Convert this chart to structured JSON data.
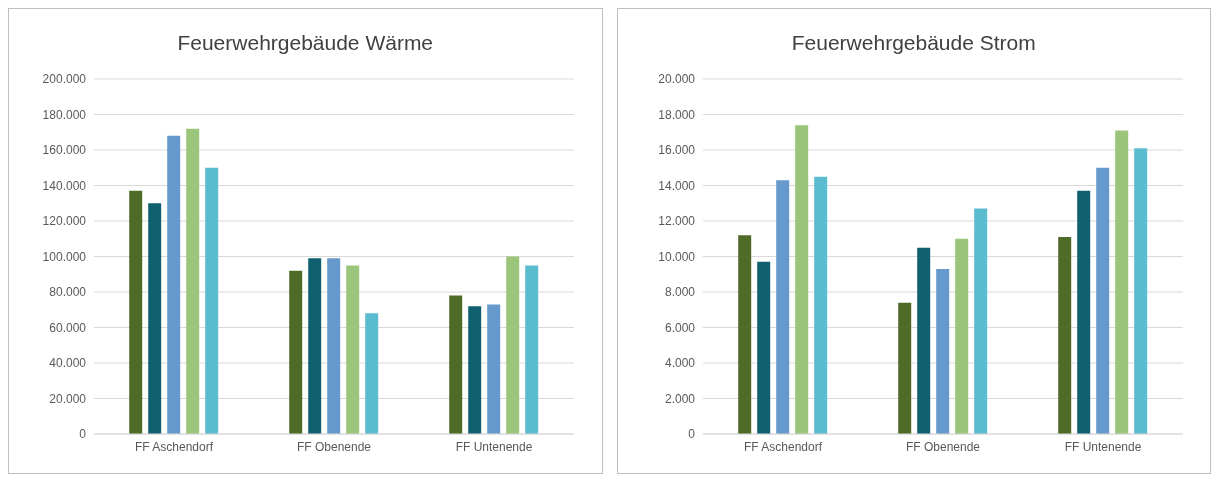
{
  "chart_data": [
    {
      "type": "bar",
      "title": "Feuerwehrgebäude Wärme",
      "categories": [
        "FF Aschendorf",
        "FF Obenende",
        "FF Untenende"
      ],
      "series": [
        {
          "color": "#4f6b28",
          "values": [
            137000,
            92000,
            78000
          ]
        },
        {
          "color": "#10616f",
          "values": [
            130000,
            99000,
            72000
          ]
        },
        {
          "color": "#6699cc",
          "values": [
            168000,
            99000,
            73000
          ]
        },
        {
          "color": "#9bc57a",
          "values": [
            172000,
            95000,
            100000
          ]
        },
        {
          "color": "#5bbccf",
          "values": [
            150000,
            68000,
            95000
          ]
        }
      ],
      "ylim": [
        0,
        200000
      ],
      "yticks": [
        {
          "value": 0,
          "label": "0"
        },
        {
          "value": 20000,
          "label": "20.000"
        },
        {
          "value": 40000,
          "label": "40.000"
        },
        {
          "value": 60000,
          "label": "60.000"
        },
        {
          "value": 80000,
          "label": "80.000"
        },
        {
          "value": 100000,
          "label": "100.000"
        },
        {
          "value": 120000,
          "label": "120.000"
        },
        {
          "value": 140000,
          "label": "140.000"
        },
        {
          "value": 160000,
          "label": "160.000"
        },
        {
          "value": 180000,
          "label": "180.000"
        },
        {
          "value": 200000,
          "label": "200.000"
        }
      ],
      "grid": "y"
    },
    {
      "type": "bar",
      "title": "Feuerwehrgebäude Strom",
      "categories": [
        "FF Aschendorf",
        "FF Obenende",
        "FF Untenende"
      ],
      "series": [
        {
          "color": "#4f6b28",
          "values": [
            11200,
            7400,
            11100
          ]
        },
        {
          "color": "#10616f",
          "values": [
            9700,
            10500,
            13700
          ]
        },
        {
          "color": "#6699cc",
          "values": [
            14300,
            9300,
            15000
          ]
        },
        {
          "color": "#9bc57a",
          "values": [
            17400,
            11000,
            17100
          ]
        },
        {
          "color": "#5bbccf",
          "values": [
            14500,
            12700,
            16100
          ]
        }
      ],
      "ylim": [
        0,
        20000
      ],
      "yticks": [
        {
          "value": 0,
          "label": "0"
        },
        {
          "value": 2000,
          "label": "2.000"
        },
        {
          "value": 4000,
          "label": "4.000"
        },
        {
          "value": 6000,
          "label": "6.000"
        },
        {
          "value": 8000,
          "label": "8.000"
        },
        {
          "value": 10000,
          "label": "10.000"
        },
        {
          "value": 12000,
          "label": "12.000"
        },
        {
          "value": 14000,
          "label": "14.000"
        },
        {
          "value": 16000,
          "label": "16.000"
        },
        {
          "value": 18000,
          "label": "18.000"
        },
        {
          "value": 20000,
          "label": "20.000"
        }
      ],
      "grid": "y"
    }
  ]
}
